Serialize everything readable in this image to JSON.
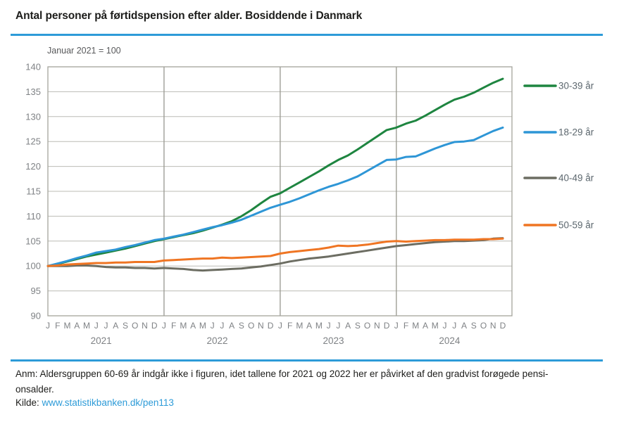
{
  "title": "Antal personer på førtidspension efter alder. Bosiddende i Danmark",
  "accent_color": "#2d9bd8",
  "chart_data": {
    "type": "line",
    "subtitle": "Januar 2021 = 100",
    "ylabel": "",
    "xlabel": "",
    "ylim": [
      90,
      140
    ],
    "ytick_step": 5,
    "grid": "horizontal gridlines every 5; vertical separators at each January",
    "legend_position": "right",
    "years": [
      "2021",
      "2022",
      "2023",
      "2024"
    ],
    "month_initials": [
      "J",
      "F",
      "M",
      "A",
      "M",
      "J",
      "J",
      "A",
      "S",
      "O",
      "N",
      "D"
    ],
    "x_note": "48 monthly observations, Jan 2021 - Dec 2024, index Jan 2021 = 100",
    "series": [
      {
        "name": "30-39 år",
        "color": "#1e8540",
        "values": [
          100.0,
          100.4,
          100.9,
          101.4,
          101.9,
          102.3,
          102.7,
          103.1,
          103.5,
          104.0,
          104.5,
          105.0,
          105.4,
          105.8,
          106.2,
          106.6,
          107.1,
          107.7,
          108.3,
          109.0,
          110.0,
          111.2,
          112.6,
          113.9,
          114.6,
          115.7,
          116.8,
          117.9,
          119.0,
          120.2,
          121.3,
          122.2,
          123.4,
          124.7,
          126.0,
          127.3,
          127.8,
          128.6,
          129.2,
          130.2,
          131.3,
          132.4,
          133.4,
          134.0,
          134.8,
          135.8,
          136.8,
          137.6
        ]
      },
      {
        "name": "18-29 år",
        "color": "#2e96d6",
        "values": [
          100.0,
          100.5,
          101.0,
          101.6,
          102.1,
          102.7,
          103.0,
          103.3,
          103.8,
          104.2,
          104.7,
          105.2,
          105.5,
          105.9,
          106.3,
          106.8,
          107.3,
          107.8,
          108.2,
          108.7,
          109.3,
          110.1,
          110.9,
          111.7,
          112.3,
          112.9,
          113.6,
          114.4,
          115.2,
          115.9,
          116.5,
          117.2,
          118.0,
          119.1,
          120.2,
          121.3,
          121.4,
          121.9,
          122.0,
          122.8,
          123.6,
          124.3,
          124.9,
          125.0,
          125.3,
          126.2,
          127.1,
          127.8
        ]
      },
      {
        "name": "40-49 år",
        "color": "#6c6d62",
        "values": [
          100.0,
          100.0,
          100.0,
          100.1,
          100.1,
          100.0,
          99.8,
          99.7,
          99.7,
          99.6,
          99.6,
          99.5,
          99.6,
          99.5,
          99.4,
          99.2,
          99.1,
          99.2,
          99.3,
          99.4,
          99.5,
          99.7,
          99.9,
          100.2,
          100.5,
          100.9,
          101.2,
          101.5,
          101.7,
          101.9,
          102.2,
          102.5,
          102.8,
          103.1,
          103.4,
          103.7,
          104.0,
          104.2,
          104.4,
          104.6,
          104.8,
          104.9,
          105.0,
          105.0,
          105.1,
          105.2,
          105.5,
          105.6
        ]
      },
      {
        "name": "50-59 år",
        "color": "#ef7523",
        "values": [
          100.0,
          100.1,
          100.3,
          100.4,
          100.5,
          100.6,
          100.6,
          100.7,
          100.7,
          100.8,
          100.8,
          100.8,
          101.1,
          101.2,
          101.3,
          101.4,
          101.5,
          101.5,
          101.7,
          101.6,
          101.7,
          101.8,
          101.9,
          102.0,
          102.5,
          102.8,
          103.0,
          103.2,
          103.4,
          103.7,
          104.1,
          104.0,
          104.1,
          104.3,
          104.6,
          104.9,
          105.0,
          104.9,
          105.0,
          105.1,
          105.2,
          105.2,
          105.3,
          105.3,
          105.3,
          105.4,
          105.4,
          105.5
        ]
      }
    ]
  },
  "footer": {
    "note_line1": "Anm: Aldersgruppen 60-69 år indgår ikke i figuren, idet tallene for 2021 og 2022 her er påvirket af den gradvist forøgede pensi-",
    "note_line2": "onsalder.",
    "source_label": "Kilde:",
    "source_link": "www.statistikbanken.dk/pen113"
  }
}
